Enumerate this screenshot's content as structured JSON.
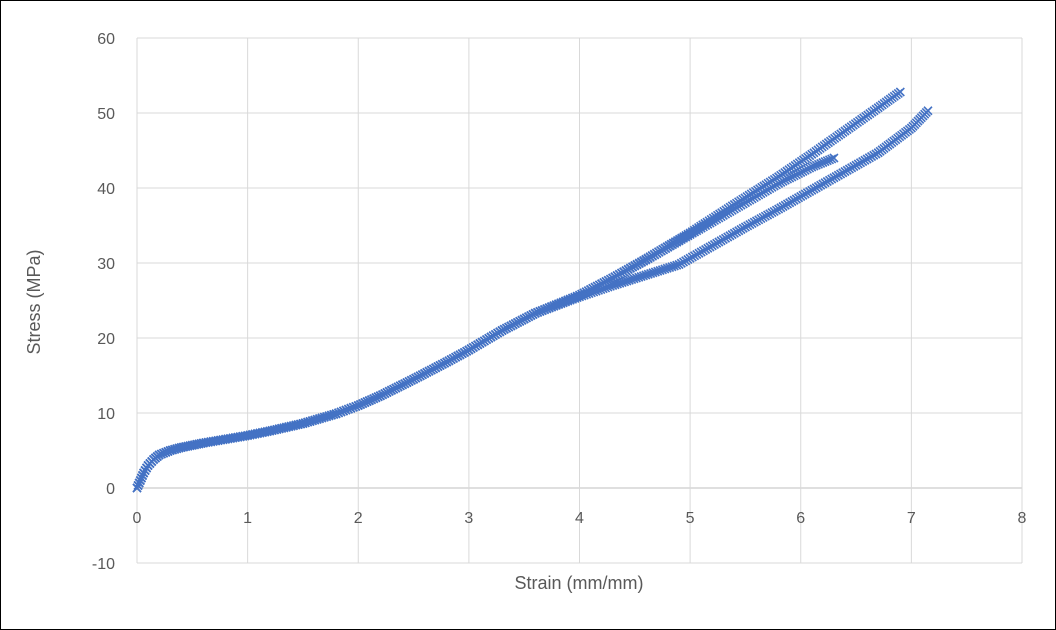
{
  "chart_data": {
    "type": "scatter",
    "title": "",
    "xlabel": "Strain (mm/mm)",
    "ylabel": "Stress (MPa)",
    "xlim": [
      0,
      8
    ],
    "ylim": [
      -10,
      60
    ],
    "xticks": [
      "0",
      "1",
      "2",
      "3",
      "4",
      "5",
      "6",
      "7",
      "8"
    ],
    "yticks": [
      "-10",
      "0",
      "10",
      "20",
      "30",
      "40",
      "50",
      "60"
    ],
    "grid": true,
    "legend": "none",
    "marker": "x",
    "color": "#4472c4",
    "series": [
      {
        "x": [
          0,
          0.03,
          0.06,
          0.1,
          0.15,
          0.2,
          0.3,
          0.4,
          0.5,
          0.6,
          0.8,
          1.0,
          1.2,
          1.5,
          1.8,
          2.0,
          2.2,
          2.5,
          2.8,
          3.0,
          3.3,
          3.6,
          4.0,
          4.3,
          4.6,
          5.0,
          5.4,
          5.8,
          6.1,
          6.3
        ],
        "y": [
          0,
          1,
          2,
          3,
          3.8,
          4.4,
          5.0,
          5.4,
          5.7,
          6.0,
          6.5,
          7.0,
          7.6,
          8.6,
          9.9,
          11.0,
          12.3,
          14.5,
          16.8,
          18.4,
          21.0,
          23.3,
          25.7,
          28.0,
          30.4,
          33.8,
          37.2,
          40.6,
          42.8,
          44.0
        ]
      },
      {
        "x": [
          0,
          0.03,
          0.06,
          0.1,
          0.15,
          0.2,
          0.3,
          0.4,
          0.5,
          0.6,
          0.8,
          1.0,
          1.2,
          1.5,
          1.8,
          2.0,
          2.2,
          2.5,
          2.8,
          3.0,
          3.3,
          3.6,
          4.0,
          4.3,
          4.6,
          5.0,
          5.4,
          5.8,
          6.1,
          6.4,
          6.7,
          6.9
        ],
        "y": [
          0,
          1,
          2,
          3,
          3.8,
          4.4,
          5.0,
          5.4,
          5.7,
          6.0,
          6.5,
          7.0,
          7.6,
          8.6,
          9.9,
          11.0,
          12.3,
          14.5,
          16.8,
          18.4,
          21.0,
          23.3,
          25.7,
          28.0,
          30.5,
          34.0,
          37.8,
          41.5,
          44.5,
          47.6,
          50.7,
          52.8
        ]
      },
      {
        "x": [
          0,
          0.03,
          0.06,
          0.1,
          0.15,
          0.2,
          0.3,
          0.4,
          0.5,
          0.6,
          0.8,
          1.0,
          1.2,
          1.5,
          1.8,
          2.0,
          2.2,
          2.5,
          2.8,
          3.0,
          3.3,
          3.6,
          4.0,
          4.3,
          4.6,
          4.9,
          5.2,
          5.5,
          5.8,
          6.1,
          6.4,
          6.7,
          7.0,
          7.15
        ],
        "y": [
          0,
          1,
          2,
          3,
          3.8,
          4.4,
          5.0,
          5.4,
          5.7,
          6.0,
          6.5,
          7.0,
          7.6,
          8.6,
          9.9,
          11.0,
          12.3,
          14.5,
          16.8,
          18.4,
          21.0,
          23.3,
          25.5,
          27.0,
          28.4,
          29.8,
          32.3,
          34.8,
          37.2,
          39.7,
          42.2,
          44.7,
          48.0,
          50.3
        ]
      }
    ]
  }
}
